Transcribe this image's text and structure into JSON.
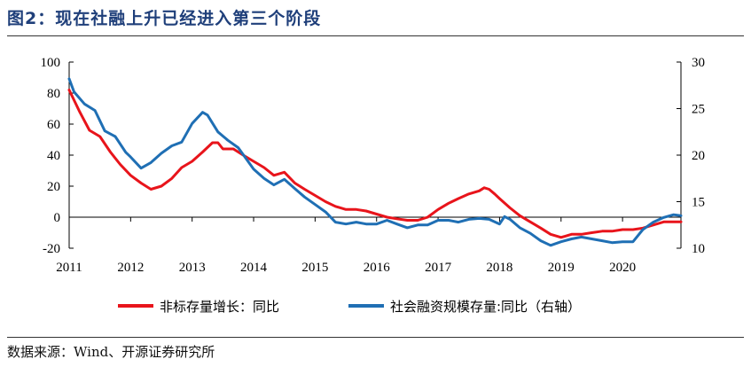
{
  "figure": {
    "title": "图2：现在社融上升已经进入第三个阶段",
    "source": "数据来源：Wind、开源证券研究所"
  },
  "chart_data": {
    "type": "line",
    "x_ticks": [
      "2011",
      "2012",
      "2013",
      "2014",
      "2015",
      "2016",
      "2017",
      "2018",
      "2019",
      "2020"
    ],
    "x_range": [
      2011.0,
      2020.95
    ],
    "y_left": {
      "ticks": [
        "-20",
        "0",
        "20",
        "40",
        "60",
        "80",
        "100"
      ],
      "range": [
        -20,
        100
      ]
    },
    "y_right": {
      "ticks": [
        "10",
        "15",
        "20",
        "25",
        "30"
      ],
      "range": [
        10,
        30
      ]
    },
    "legend_position": "bottom",
    "series": [
      {
        "name": "非标存量增长：同比",
        "axis": "left",
        "color": "#e8141b",
        "points": [
          [
            2011.0,
            82
          ],
          [
            2011.17,
            68
          ],
          [
            2011.33,
            56
          ],
          [
            2011.5,
            52
          ],
          [
            2011.67,
            42
          ],
          [
            2011.83,
            34
          ],
          [
            2012.0,
            27
          ],
          [
            2012.17,
            22
          ],
          [
            2012.33,
            18
          ],
          [
            2012.5,
            20
          ],
          [
            2012.67,
            25
          ],
          [
            2012.83,
            32
          ],
          [
            2013.0,
            36
          ],
          [
            2013.17,
            42
          ],
          [
            2013.33,
            48
          ],
          [
            2013.42,
            48
          ],
          [
            2013.5,
            44
          ],
          [
            2013.67,
            44
          ],
          [
            2013.83,
            40
          ],
          [
            2014.0,
            36
          ],
          [
            2014.17,
            32
          ],
          [
            2014.33,
            27
          ],
          [
            2014.5,
            29
          ],
          [
            2014.67,
            22
          ],
          [
            2014.83,
            18
          ],
          [
            2015.0,
            14
          ],
          [
            2015.17,
            10
          ],
          [
            2015.33,
            7
          ],
          [
            2015.5,
            5
          ],
          [
            2015.67,
            5
          ],
          [
            2015.83,
            4
          ],
          [
            2016.0,
            2
          ],
          [
            2016.17,
            0
          ],
          [
            2016.33,
            -1
          ],
          [
            2016.5,
            -2
          ],
          [
            2016.67,
            -2
          ],
          [
            2016.83,
            0
          ],
          [
            2017.0,
            5
          ],
          [
            2017.17,
            9
          ],
          [
            2017.33,
            12
          ],
          [
            2017.5,
            15
          ],
          [
            2017.67,
            17
          ],
          [
            2017.75,
            19
          ],
          [
            2017.83,
            18
          ],
          [
            2017.92,
            15
          ],
          [
            2018.0,
            12
          ],
          [
            2018.17,
            6
          ],
          [
            2018.33,
            1
          ],
          [
            2018.5,
            -3
          ],
          [
            2018.67,
            -7
          ],
          [
            2018.83,
            -11
          ],
          [
            2019.0,
            -13
          ],
          [
            2019.17,
            -11
          ],
          [
            2019.33,
            -11
          ],
          [
            2019.5,
            -10
          ],
          [
            2019.67,
            -9
          ],
          [
            2019.83,
            -9
          ],
          [
            2020.0,
            -8
          ],
          [
            2020.17,
            -8
          ],
          [
            2020.33,
            -7
          ],
          [
            2020.5,
            -5
          ],
          [
            2020.67,
            -3
          ],
          [
            2020.83,
            -3
          ],
          [
            2020.95,
            -3
          ]
        ]
      },
      {
        "name": "社会融资规模存量:同比（右轴）",
        "axis": "right",
        "color": "#1f6fb4",
        "points": [
          [
            2011.0,
            28.2
          ],
          [
            2011.08,
            26.8
          ],
          [
            2011.25,
            25.5
          ],
          [
            2011.42,
            24.8
          ],
          [
            2011.58,
            22.6
          ],
          [
            2011.75,
            22
          ],
          [
            2011.92,
            20.3
          ],
          [
            2012.0,
            19.8
          ],
          [
            2012.17,
            18.6
          ],
          [
            2012.33,
            19.2
          ],
          [
            2012.5,
            20.2
          ],
          [
            2012.67,
            21
          ],
          [
            2012.83,
            21.4
          ],
          [
            2013.0,
            23.4
          ],
          [
            2013.17,
            24.6
          ],
          [
            2013.25,
            24.3
          ],
          [
            2013.42,
            22.5
          ],
          [
            2013.58,
            21.6
          ],
          [
            2013.75,
            20.8
          ],
          [
            2014.0,
            18.5
          ],
          [
            2014.17,
            17.5
          ],
          [
            2014.33,
            16.8
          ],
          [
            2014.5,
            17.4
          ],
          [
            2014.67,
            16.4
          ],
          [
            2014.83,
            15.5
          ],
          [
            2015.0,
            14.7
          ],
          [
            2015.17,
            13.9
          ],
          [
            2015.33,
            12.8
          ],
          [
            2015.5,
            12.6
          ],
          [
            2015.67,
            12.8
          ],
          [
            2015.83,
            12.6
          ],
          [
            2016.0,
            12.6
          ],
          [
            2016.17,
            13
          ],
          [
            2016.33,
            12.6
          ],
          [
            2016.5,
            12.2
          ],
          [
            2016.67,
            12.5
          ],
          [
            2016.83,
            12.5
          ],
          [
            2017.0,
            13
          ],
          [
            2017.17,
            13
          ],
          [
            2017.33,
            12.8
          ],
          [
            2017.5,
            13.1
          ],
          [
            2017.67,
            13.2
          ],
          [
            2017.83,
            13.1
          ],
          [
            2018.0,
            12.6
          ],
          [
            2018.08,
            13.4
          ],
          [
            2018.17,
            13.1
          ],
          [
            2018.33,
            12.2
          ],
          [
            2018.5,
            11.6
          ],
          [
            2018.67,
            10.8
          ],
          [
            2018.83,
            10.3
          ],
          [
            2019.0,
            10.7
          ],
          [
            2019.17,
            11
          ],
          [
            2019.33,
            11.2
          ],
          [
            2019.5,
            11
          ],
          [
            2019.67,
            10.8
          ],
          [
            2019.83,
            10.6
          ],
          [
            2020.0,
            10.7
          ],
          [
            2020.17,
            10.7
          ],
          [
            2020.33,
            12
          ],
          [
            2020.5,
            12.8
          ],
          [
            2020.67,
            13.3
          ],
          [
            2020.83,
            13.6
          ],
          [
            2020.95,
            13.5
          ]
        ]
      }
    ]
  }
}
